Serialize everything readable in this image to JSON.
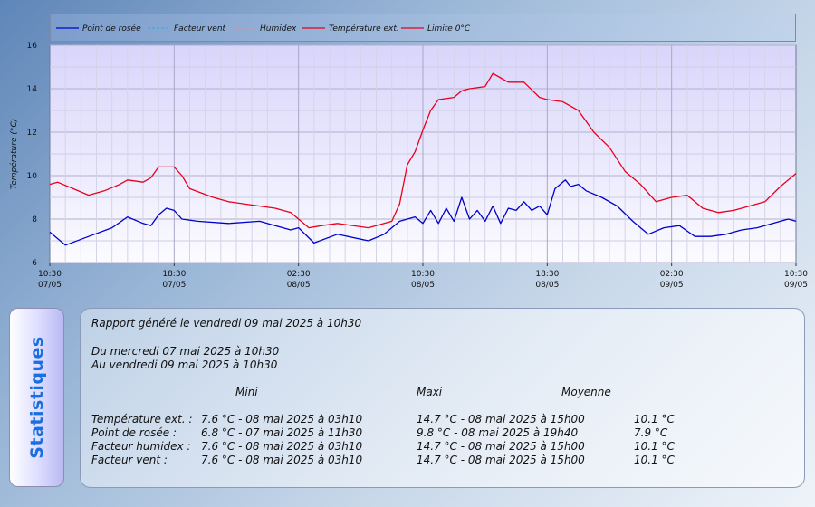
{
  "chart_data": {
    "type": "line",
    "ylabel": "Température (°C)",
    "ylim": [
      6,
      16
    ],
    "yticks": [
      6,
      8,
      10,
      12,
      14,
      16
    ],
    "xlim": [
      "2025-05-07 10:30",
      "2025-05-09 10:30"
    ],
    "xticks": [
      {
        "time": "10:30",
        "date": "07/05",
        "at": "2025-05-07 10:30"
      },
      {
        "time": "18:30",
        "date": "07/05",
        "at": "2025-05-07 18:30"
      },
      {
        "time": "02:30",
        "date": "08/05",
        "at": "2025-05-08 02:30"
      },
      {
        "time": "10:30",
        "date": "08/05",
        "at": "2025-05-08 10:30"
      },
      {
        "time": "18:30",
        "date": "08/05",
        "at": "2025-05-08 18:30"
      },
      {
        "time": "02:30",
        "date": "09/05",
        "at": "2025-05-09 02:30"
      },
      {
        "time": "10:30",
        "date": "09/05",
        "at": "2025-05-09 10:30"
      }
    ],
    "legend": [
      "Point de rosée",
      "Facteur vent",
      "Humidex",
      "Température ext.",
      "Limite 0°C"
    ],
    "legend_placement": "top",
    "grid": true,
    "series": [
      {
        "name": "Point de rosée",
        "color": "#0000cc",
        "points": [
          [
            "2025-05-07 10:30",
            7.4
          ],
          [
            "2025-05-07 11:30",
            6.8
          ],
          [
            "2025-05-07 13:00",
            7.2
          ],
          [
            "2025-05-07 14:30",
            7.6
          ],
          [
            "2025-05-07 15:30",
            8.1
          ],
          [
            "2025-05-07 16:30",
            7.8
          ],
          [
            "2025-05-07 17:00",
            7.7
          ],
          [
            "2025-05-07 17:30",
            8.2
          ],
          [
            "2025-05-07 18:00",
            8.5
          ],
          [
            "2025-05-07 18:30",
            8.4
          ],
          [
            "2025-05-07 19:00",
            8.0
          ],
          [
            "2025-05-07 20:00",
            7.9
          ],
          [
            "2025-05-07 22:00",
            7.8
          ],
          [
            "2025-05-08 00:00",
            7.9
          ],
          [
            "2025-05-08 01:00",
            7.7
          ],
          [
            "2025-05-08 02:00",
            7.5
          ],
          [
            "2025-05-08 02:30",
            7.6
          ],
          [
            "2025-05-08 03:30",
            6.9
          ],
          [
            "2025-05-08 05:00",
            7.3
          ],
          [
            "2025-05-08 07:00",
            7.0
          ],
          [
            "2025-05-08 08:00",
            7.3
          ],
          [
            "2025-05-08 09:00",
            7.9
          ],
          [
            "2025-05-08 10:00",
            8.1
          ],
          [
            "2025-05-08 10:30",
            7.8
          ],
          [
            "2025-05-08 11:00",
            8.4
          ],
          [
            "2025-05-08 11:30",
            7.8
          ],
          [
            "2025-05-08 12:00",
            8.5
          ],
          [
            "2025-05-08 12:30",
            7.9
          ],
          [
            "2025-05-08 13:00",
            9.0
          ],
          [
            "2025-05-08 13:30",
            8.0
          ],
          [
            "2025-05-08 14:00",
            8.4
          ],
          [
            "2025-05-08 14:30",
            7.9
          ],
          [
            "2025-05-08 15:00",
            8.6
          ],
          [
            "2025-05-08 15:30",
            7.8
          ],
          [
            "2025-05-08 16:00",
            8.5
          ],
          [
            "2025-05-08 16:30",
            8.4
          ],
          [
            "2025-05-08 17:00",
            8.8
          ],
          [
            "2025-05-08 17:30",
            8.4
          ],
          [
            "2025-05-08 18:00",
            8.6
          ],
          [
            "2025-05-08 18:30",
            8.2
          ],
          [
            "2025-05-08 19:00",
            9.4
          ],
          [
            "2025-05-08 19:40",
            9.8
          ],
          [
            "2025-05-08 20:00",
            9.5
          ],
          [
            "2025-05-08 20:30",
            9.6
          ],
          [
            "2025-05-08 21:00",
            9.3
          ],
          [
            "2025-05-08 22:00",
            9.0
          ],
          [
            "2025-05-08 23:00",
            8.6
          ],
          [
            "2025-05-09 00:00",
            7.9
          ],
          [
            "2025-05-09 01:00",
            7.3
          ],
          [
            "2025-05-09 02:00",
            7.6
          ],
          [
            "2025-05-09 03:00",
            7.7
          ],
          [
            "2025-05-09 04:00",
            7.2
          ],
          [
            "2025-05-09 05:00",
            7.2
          ],
          [
            "2025-05-09 06:00",
            7.3
          ],
          [
            "2025-05-09 07:00",
            7.5
          ],
          [
            "2025-05-09 08:00",
            7.6
          ],
          [
            "2025-05-09 09:00",
            7.8
          ],
          [
            "2025-05-09 10:00",
            8.0
          ],
          [
            "2025-05-09 10:30",
            7.9
          ]
        ]
      },
      {
        "name": "Température ext.",
        "color": "#e8001c",
        "points": [
          [
            "2025-05-07 10:30",
            9.6
          ],
          [
            "2025-05-07 11:00",
            9.7
          ],
          [
            "2025-05-07 12:00",
            9.4
          ],
          [
            "2025-05-07 13:00",
            9.1
          ],
          [
            "2025-05-07 14:00",
            9.3
          ],
          [
            "2025-05-07 15:00",
            9.6
          ],
          [
            "2025-05-07 15:30",
            9.8
          ],
          [
            "2025-05-07 16:30",
            9.7
          ],
          [
            "2025-05-07 17:00",
            9.9
          ],
          [
            "2025-05-07 17:30",
            10.4
          ],
          [
            "2025-05-07 18:30",
            10.4
          ],
          [
            "2025-05-07 19:00",
            10.0
          ],
          [
            "2025-05-07 19:30",
            9.4
          ],
          [
            "2025-05-07 21:00",
            9.0
          ],
          [
            "2025-05-07 22:00",
            8.8
          ],
          [
            "2025-05-08 00:00",
            8.6
          ],
          [
            "2025-05-08 01:00",
            8.5
          ],
          [
            "2025-05-08 02:00",
            8.3
          ],
          [
            "2025-05-08 03:10",
            7.6
          ],
          [
            "2025-05-08 04:00",
            7.7
          ],
          [
            "2025-05-08 05:00",
            7.8
          ],
          [
            "2025-05-08 07:00",
            7.6
          ],
          [
            "2025-05-08 08:30",
            7.9
          ],
          [
            "2025-05-08 09:00",
            8.7
          ],
          [
            "2025-05-08 09:30",
            10.5
          ],
          [
            "2025-05-08 10:00",
            11.1
          ],
          [
            "2025-05-08 10:30",
            12.1
          ],
          [
            "2025-05-08 11:00",
            13.0
          ],
          [
            "2025-05-08 11:30",
            13.5
          ],
          [
            "2025-05-08 12:30",
            13.6
          ],
          [
            "2025-05-08 13:00",
            13.9
          ],
          [
            "2025-05-08 13:30",
            14.0
          ],
          [
            "2025-05-08 14:30",
            14.1
          ],
          [
            "2025-05-08 15:00",
            14.7
          ],
          [
            "2025-05-08 15:30",
            14.5
          ],
          [
            "2025-05-08 16:00",
            14.3
          ],
          [
            "2025-05-08 17:00",
            14.3
          ],
          [
            "2025-05-08 18:00",
            13.6
          ],
          [
            "2025-05-08 18:30",
            13.5
          ],
          [
            "2025-05-08 19:30",
            13.4
          ],
          [
            "2025-05-08 20:30",
            13.0
          ],
          [
            "2025-05-08 21:30",
            12.0
          ],
          [
            "2025-05-08 22:30",
            11.3
          ],
          [
            "2025-05-08 23:30",
            10.2
          ],
          [
            "2025-05-09 00:30",
            9.6
          ],
          [
            "2025-05-09 01:30",
            8.8
          ],
          [
            "2025-05-09 02:30",
            9.0
          ],
          [
            "2025-05-09 03:30",
            9.1
          ],
          [
            "2025-05-09 04:30",
            8.5
          ],
          [
            "2025-05-09 05:30",
            8.3
          ],
          [
            "2025-05-09 06:30",
            8.4
          ],
          [
            "2025-05-09 07:30",
            8.6
          ],
          [
            "2025-05-09 08:30",
            8.8
          ],
          [
            "2025-05-09 09:30",
            9.5
          ],
          [
            "2025-05-09 10:30",
            10.1
          ]
        ]
      }
    ]
  },
  "stats": {
    "title": "Statistiques",
    "report_line": "Rapport généré le vendredi 09 mai 2025 à 10h30",
    "from_line": "Du mercredi 07 mai 2025 à 10h30",
    "to_line": "Au vendredi 09 mai 2025 à 10h30",
    "headers": {
      "min": "Mini",
      "max": "Maxi",
      "avg": "Moyenne"
    },
    "rows": [
      {
        "label": "Température ext. :",
        "min": "7.6 °C - 08 mai 2025 à 03h10",
        "max": "14.7 °C - 08 mai 2025 à 15h00",
        "avg": "10.1 °C"
      },
      {
        "label": "Point de rosée :",
        "min": "6.8 °C - 07 mai 2025 à 11h30",
        "max": "9.8 °C - 08 mai 2025 à 19h40",
        "avg": "7.9 °C"
      },
      {
        "label": "Facteur humidex :",
        "min": "7.6 °C - 08 mai 2025 à 03h10",
        "max": "14.7 °C - 08 mai 2025 à 15h00",
        "avg": "10.1 °C"
      },
      {
        "label": "Facteur vent :",
        "min": "7.6 °C - 08 mai 2025 à 03h10",
        "max": "14.7 °C - 08 mai 2025 à 15h00",
        "avg": "10.1 °C"
      }
    ]
  },
  "colors": {
    "dewpoint": "#0000cc",
    "wind": "#3fa9e0",
    "humidex": "#f08a8a",
    "temperature": "#e8001c",
    "limit": "#e8001c",
    "stats_title": "#1a6fe0"
  }
}
